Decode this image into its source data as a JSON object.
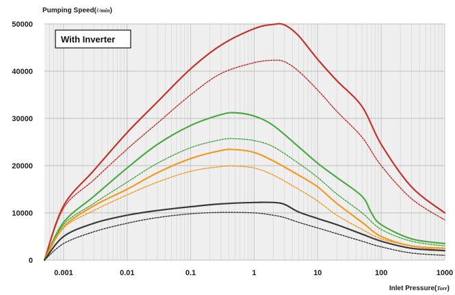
{
  "chart_data": {
    "type": "line",
    "ylabel": "Pumping Speed(",
    "ylabel_unit": "ℓ/min",
    "xlabel": "Inlet Pressure(",
    "xlabel_unit": "Torr",
    "annotation": "With Inverter",
    "x_scale": "log",
    "xlim": [
      0.0005,
      1000
    ],
    "ylim": [
      0,
      50000
    ],
    "grid": true,
    "x_ticks": [
      0.001,
      0.01,
      0.1,
      1,
      10,
      100,
      1000
    ],
    "x_tick_labels": [
      "0.001",
      "0.01",
      "0.1",
      "1",
      "10",
      "100",
      "1000"
    ],
    "y_ticks": [
      0,
      10000,
      20000,
      30000,
      40000,
      50000
    ],
    "y_tick_labels": [
      "0",
      "10000",
      "20000",
      "30000",
      "40000",
      "50000"
    ],
    "series": [
      {
        "color": "#c8312b",
        "style": "solid",
        "x": [
          0.0005,
          0.001,
          0.003,
          0.01,
          0.03,
          0.1,
          0.3,
          1,
          2,
          3,
          5,
          10,
          20,
          50,
          100,
          300,
          1000
        ],
        "y": [
          0,
          11500,
          19000,
          27000,
          33500,
          40500,
          45500,
          49000,
          49900,
          49800,
          47500,
          42500,
          38000,
          32500,
          24500,
          15500,
          10000
        ]
      },
      {
        "color": "#c8312b",
        "style": "dotted",
        "x": [
          0.0005,
          0.001,
          0.003,
          0.01,
          0.03,
          0.1,
          0.3,
          1,
          2,
          3,
          5,
          10,
          20,
          50,
          100,
          300,
          1000
        ],
        "y": [
          0,
          11000,
          17000,
          23500,
          29000,
          35000,
          39500,
          41800,
          42300,
          42000,
          40000,
          36000,
          31500,
          26000,
          20000,
          13000,
          8500
        ]
      },
      {
        "color": "#4aaa42",
        "style": "solid",
        "x": [
          0.0005,
          0.001,
          0.003,
          0.01,
          0.03,
          0.1,
          0.3,
          0.5,
          1,
          2,
          5,
          10,
          20,
          50,
          70,
          100,
          300,
          1000
        ],
        "y": [
          0,
          8000,
          13500,
          19500,
          24500,
          28500,
          30800,
          31200,
          30500,
          28500,
          24000,
          20500,
          17500,
          13500,
          10000,
          7500,
          4500,
          3500
        ]
      },
      {
        "color": "#4aaa42",
        "style": "dotted",
        "x": [
          0.0005,
          0.001,
          0.003,
          0.01,
          0.03,
          0.1,
          0.3,
          0.5,
          1,
          2,
          5,
          10,
          20,
          50,
          100,
          300,
          1000
        ],
        "y": [
          0,
          7500,
          12000,
          16500,
          20500,
          23800,
          25500,
          25700,
          25300,
          24000,
          20500,
          17500,
          14000,
          10000,
          6500,
          4000,
          3000
        ]
      },
      {
        "color": "#f39a20",
        "style": "solid",
        "x": [
          0.0005,
          0.001,
          0.003,
          0.01,
          0.03,
          0.1,
          0.3,
          0.5,
          1,
          2,
          5,
          10,
          20,
          50,
          100,
          300,
          1000
        ],
        "y": [
          0,
          7000,
          11500,
          15000,
          18500,
          21500,
          23200,
          23400,
          22800,
          21000,
          18000,
          15500,
          12000,
          8000,
          5000,
          3000,
          2500
        ]
      },
      {
        "color": "#f39a20",
        "style": "dotted",
        "x": [
          0.0005,
          0.001,
          0.003,
          0.01,
          0.03,
          0.1,
          0.3,
          0.5,
          1,
          2,
          5,
          10,
          20,
          50,
          100,
          300,
          1000
        ],
        "y": [
          0,
          6800,
          10500,
          13800,
          16500,
          18800,
          19800,
          19900,
          19500,
          18000,
          15000,
          12500,
          9500,
          6500,
          4500,
          3000,
          2000
        ]
      },
      {
        "color": "#3a3a3a",
        "style": "solid",
        "x": [
          0.0005,
          0.001,
          0.003,
          0.01,
          0.03,
          0.1,
          0.3,
          1,
          2,
          3,
          5,
          10,
          20,
          50,
          100,
          300,
          1000
        ],
        "y": [
          0,
          5000,
          7800,
          9500,
          10500,
          11300,
          11900,
          12200,
          12200,
          11800,
          10200,
          8800,
          7500,
          5500,
          4000,
          2500,
          2000
        ]
      },
      {
        "color": "#3a3a3a",
        "style": "dotted",
        "x": [
          0.0005,
          0.001,
          0.003,
          0.01,
          0.03,
          0.1,
          0.3,
          1,
          2,
          3,
          5,
          10,
          20,
          50,
          100,
          300,
          1000
        ],
        "y": [
          0,
          3500,
          6000,
          7800,
          9000,
          9800,
          10100,
          10000,
          9500,
          9000,
          8000,
          6800,
          5600,
          4000,
          2800,
          1500,
          1000
        ]
      }
    ]
  }
}
